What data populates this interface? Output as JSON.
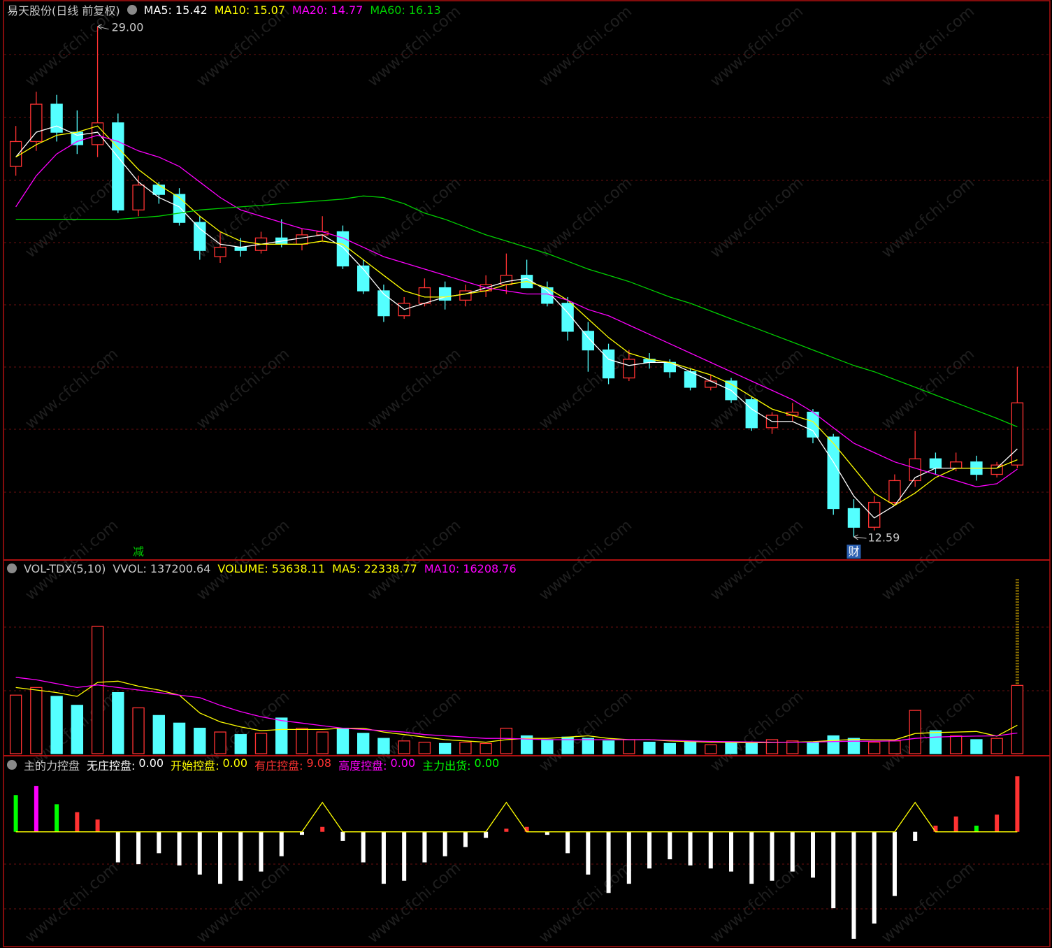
{
  "watermark": "www.cfchi.com",
  "chart_data": [
    {
      "type": "candlestick",
      "title": "易天股份(日线 前复权)",
      "open": [
        24.5,
        25.3,
        26.5,
        25.6,
        25.2,
        25.9,
        23.1,
        23.9,
        23.6,
        22.7,
        21.6,
        21.9,
        21.8,
        22.2,
        22.0,
        22.3,
        22.4,
        21.3,
        20.5,
        19.7,
        20.1,
        20.6,
        20.2,
        20.5,
        20.7,
        21.0,
        20.6,
        20.1,
        19.2,
        18.6,
        17.7,
        18.3,
        18.2,
        17.9,
        17.4,
        17.6,
        17.0,
        16.1,
        16.5,
        16.6,
        15.8,
        13.5,
        12.9,
        13.7,
        14.4,
        15.1,
        14.8,
        15.0,
        14.6,
        14.9
      ],
      "high": [
        25.8,
        26.9,
        26.8,
        26.3,
        29.0,
        26.2,
        24.2,
        24.0,
        23.8,
        22.9,
        22.4,
        22.2,
        22.4,
        22.8,
        22.5,
        22.9,
        22.6,
        21.5,
        20.7,
        20.3,
        20.9,
        20.8,
        20.7,
        21.0,
        21.7,
        21.5,
        20.8,
        20.3,
        19.5,
        18.8,
        18.6,
        18.5,
        18.3,
        18.0,
        17.8,
        17.7,
        17.1,
        16.6,
        16.9,
        16.7,
        15.9,
        13.8,
        13.9,
        14.6,
        16.0,
        15.3,
        15.3,
        15.2,
        15.0,
        18.06
      ],
      "low": [
        24.2,
        25.0,
        25.3,
        24.9,
        24.8,
        23.0,
        22.9,
        23.3,
        22.6,
        21.5,
        21.4,
        21.6,
        21.7,
        21.9,
        21.8,
        22.1,
        21.2,
        20.4,
        19.5,
        19.6,
        20.0,
        19.9,
        20.0,
        20.3,
        20.4,
        20.6,
        20.0,
        18.9,
        17.9,
        17.5,
        17.6,
        18.0,
        17.7,
        17.3,
        17.3,
        16.9,
        16.0,
        15.9,
        16.3,
        15.6,
        13.3,
        12.59,
        12.8,
        13.6,
        14.2,
        14.6,
        14.7,
        14.4,
        14.5,
        14.8
      ],
      "close": [
        25.3,
        26.5,
        25.6,
        25.2,
        25.9,
        23.1,
        23.9,
        23.6,
        22.7,
        21.8,
        21.9,
        21.8,
        22.2,
        22.0,
        22.3,
        22.4,
        21.3,
        20.5,
        19.7,
        20.1,
        20.6,
        20.2,
        20.5,
        20.7,
        21.0,
        20.6,
        20.1,
        19.2,
        18.6,
        17.7,
        18.3,
        18.2,
        17.9,
        17.4,
        17.6,
        17.0,
        16.1,
        16.5,
        16.6,
        15.8,
        13.5,
        12.9,
        13.7,
        14.4,
        15.1,
        14.8,
        15.0,
        14.6,
        14.9,
        16.9
      ],
      "up_color": "#ff3232",
      "down_color": "#54ffff",
      "ylim": [
        11.87,
        29.85
      ],
      "grid": true,
      "max_label": "29.00",
      "min_label": "12.59",
      "markers": [
        {
          "text": "减",
          "index": 6,
          "color": "#00c800"
        },
        {
          "text": "财",
          "index": 41,
          "color": "#2a5fb0"
        }
      ],
      "series": [
        {
          "name": "MA5",
          "color": "#ffffff",
          "values": [
            24.8,
            25.6,
            25.8,
            25.5,
            25.6,
            24.8,
            24.0,
            23.5,
            23.2,
            22.5,
            22.0,
            21.9,
            22.0,
            22.1,
            22.2,
            22.3,
            21.9,
            21.2,
            20.4,
            19.9,
            20.1,
            20.3,
            20.4,
            20.6,
            20.8,
            20.9,
            20.5,
            19.8,
            19.0,
            18.3,
            18.1,
            18.2,
            18.2,
            17.9,
            17.6,
            17.3,
            16.7,
            16.3,
            16.3,
            16.0,
            15.0,
            13.9,
            13.2,
            13.6,
            14.5,
            14.8,
            14.8,
            14.8,
            14.8,
            15.42
          ]
        },
        {
          "name": "MA10",
          "color": "#ffff00",
          "values": [
            24.8,
            25.2,
            25.5,
            25.6,
            25.8,
            25.1,
            24.4,
            23.9,
            23.5,
            22.9,
            22.4,
            22.1,
            22.0,
            22.0,
            22.0,
            22.1,
            22.0,
            21.5,
            21.0,
            20.5,
            20.3,
            20.3,
            20.4,
            20.5,
            20.7,
            20.8,
            20.6,
            20.2,
            19.6,
            19.0,
            18.5,
            18.3,
            18.2,
            18.0,
            17.8,
            17.5,
            17.1,
            16.7,
            16.5,
            16.3,
            15.6,
            14.8,
            14.0,
            13.6,
            14.0,
            14.5,
            14.8,
            14.8,
            14.8,
            15.07
          ]
        },
        {
          "name": "MA20",
          "color": "#ff00ff",
          "values": [
            23.2,
            24.2,
            24.9,
            25.3,
            25.5,
            25.3,
            25.0,
            24.8,
            24.5,
            24.0,
            23.5,
            23.1,
            22.9,
            22.7,
            22.5,
            22.4,
            22.2,
            21.9,
            21.6,
            21.4,
            21.2,
            21.0,
            20.8,
            20.6,
            20.5,
            20.4,
            20.4,
            20.2,
            19.9,
            19.7,
            19.4,
            19.1,
            18.8,
            18.5,
            18.2,
            17.9,
            17.6,
            17.3,
            17.0,
            16.6,
            16.1,
            15.6,
            15.3,
            15.0,
            14.8,
            14.6,
            14.4,
            14.2,
            14.3,
            14.77
          ]
        },
        {
          "name": "MA60",
          "color": "#00d000",
          "values": [
            22.8,
            22.8,
            22.8,
            22.8,
            22.8,
            22.8,
            22.85,
            22.9,
            23.0,
            23.1,
            23.15,
            23.2,
            23.25,
            23.3,
            23.35,
            23.4,
            23.45,
            23.55,
            23.5,
            23.3,
            23.0,
            22.8,
            22.55,
            22.3,
            22.1,
            21.9,
            21.7,
            21.45,
            21.2,
            21.0,
            20.8,
            20.55,
            20.3,
            20.1,
            19.85,
            19.6,
            19.35,
            19.1,
            18.85,
            18.6,
            18.35,
            18.1,
            17.9,
            17.65,
            17.4,
            17.15,
            16.9,
            16.65,
            16.4,
            16.13
          ]
        }
      ]
    },
    {
      "type": "bar",
      "title": "VOL-TDX(5,10)",
      "vvol_name": "VVOL",
      "vvol": 137200.64,
      "volume_name": "VOLUME",
      "volume_color": "#ffff00",
      "values": [
        46000,
        52000,
        45000,
        38000,
        100000,
        48000,
        36000,
        30000,
        24000,
        20000,
        17000,
        15000,
        16000,
        28000,
        20000,
        17000,
        20000,
        16000,
        12000,
        10000,
        9000,
        8000,
        9000,
        8000,
        20000,
        14000,
        11000,
        13000,
        12000,
        10000,
        11000,
        9000,
        8000,
        9000,
        7000,
        9000,
        8000,
        11000,
        10000,
        9000,
        14000,
        12000,
        9000,
        10000,
        34000,
        18000,
        14000,
        11000,
        12000,
        53638.11
      ],
      "ylim": [
        0,
        150000
      ],
      "series": [
        {
          "name": "MA5",
          "color": "#ffff00",
          "values": [
            52000,
            50000,
            48000,
            45000,
            56000,
            57000,
            53000,
            50000,
            46000,
            32000,
            25000,
            21000,
            18000,
            19000,
            19000,
            19000,
            20000,
            20000,
            17000,
            15000,
            13000,
            11000,
            10000,
            9000,
            11000,
            12000,
            12000,
            13000,
            14000,
            12000,
            11000,
            11000,
            10000,
            9500,
            9000,
            8800,
            8500,
            8800,
            9000,
            9400,
            10400,
            11200,
            10800,
            10800,
            15800,
            16600,
            17000,
            17400,
            13800,
            22338.77
          ]
        },
        {
          "name": "MA10",
          "color": "#ff00ff",
          "values": [
            60000,
            58000,
            55000,
            52000,
            54000,
            52000,
            50000,
            48000,
            46000,
            44000,
            38000,
            33000,
            29000,
            26000,
            24000,
            22000,
            20000,
            19000,
            18000,
            17000,
            15000,
            14000,
            13000,
            12000,
            12000,
            11500,
            11000,
            11000,
            11000,
            11000,
            11000,
            11000,
            10500,
            10000,
            9600,
            9400,
            9200,
            9000,
            9000,
            9000,
            9500,
            9800,
            9800,
            10000,
            12000,
            13000,
            13500,
            13800,
            14000,
            16208.76
          ]
        }
      ]
    },
    {
      "type": "bar",
      "title": "主的力控盘",
      "values": [
        6.0,
        7.5,
        4.5,
        3.2,
        2.0,
        -5.0,
        -5.3,
        -3.5,
        -5.5,
        -7.0,
        -8.5,
        -8.0,
        -6.5,
        -4.0,
        -0.5,
        0.8,
        -1.5,
        -5.0,
        -8.5,
        -8.0,
        -5.0,
        -4.0,
        -2.5,
        -1.0,
        0.5,
        0.8,
        -0.5,
        -3.5,
        -7.0,
        -10.0,
        -8.5,
        -6.0,
        -4.5,
        -5.5,
        -6.0,
        -6.5,
        -8.5,
        -8.0,
        -6.5,
        -7.5,
        -12.5,
        -17.5,
        -15.0,
        -10.5,
        -1.5,
        1.0,
        2.5,
        1.0,
        2.8,
        9.08
      ],
      "bar_series": [
        4,
        3,
        4,
        2,
        2,
        0,
        0,
        0,
        0,
        0,
        0,
        0,
        0,
        0,
        0,
        2,
        0,
        0,
        0,
        0,
        0,
        0,
        0,
        0,
        2,
        2,
        0,
        0,
        0,
        0,
        0,
        0,
        0,
        0,
        0,
        0,
        0,
        0,
        0,
        0,
        0,
        0,
        0,
        0,
        0,
        2,
        2,
        4,
        2,
        2
      ],
      "ylim": [
        -19,
        12.2
      ],
      "series": [
        {
          "name": "无庄控盘",
          "color": "#ffffff",
          "value": 0,
          "value_label": "0.00"
        },
        {
          "name": "开始控盘",
          "color": "#ffff00",
          "value": 0,
          "value_label": "0.00",
          "values": [
            0,
            0,
            0,
            0,
            0,
            0,
            0,
            0,
            0,
            0,
            0,
            0,
            0,
            0,
            0,
            4.8,
            0,
            0,
            0,
            0,
            0,
            0,
            0,
            0,
            4.8,
            0,
            0,
            0,
            0,
            0,
            0,
            0,
            0,
            0,
            0,
            0,
            0,
            0,
            0,
            0,
            0,
            0,
            0,
            0,
            4.8,
            0,
            0,
            0,
            0,
            0
          ]
        },
        {
          "name": "有庄控盘",
          "color": "#ff3232",
          "value": 9.08
        },
        {
          "name": "高度控盘",
          "color": "#ff00ff",
          "value": 0,
          "value_label": "0.00"
        },
        {
          "name": "主力出货",
          "color": "#00ff00",
          "value": 0,
          "value_label": "0.00"
        }
      ]
    }
  ]
}
